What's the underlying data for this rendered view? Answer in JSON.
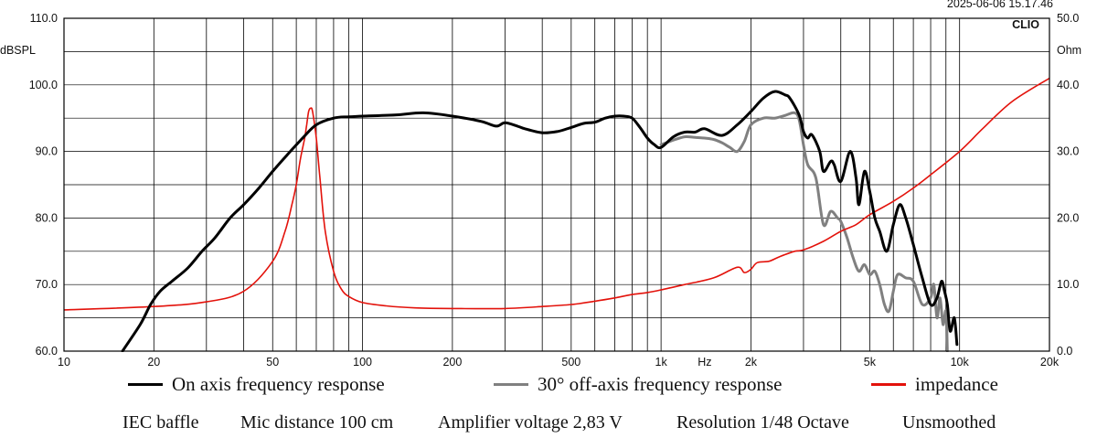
{
  "chart_data": {
    "type": "line",
    "timestamp": "2025-06-06 15.17.46",
    "brand": "CLIO",
    "left_axis": {
      "unit": "dBSPL",
      "range": [
        60,
        110
      ],
      "ticks": [
        "60.0",
        "70.0",
        "80.0",
        "90.0",
        "100.0",
        "110.0"
      ],
      "tick_values": [
        60,
        70,
        80,
        90,
        100,
        110
      ]
    },
    "right_axis": {
      "unit": "Ohm",
      "range": [
        0,
        50
      ],
      "ticks": [
        "0.0",
        "10.0",
        "20.0",
        "30.0",
        "40.0",
        "50.0"
      ],
      "tick_values": [
        0,
        10,
        20,
        30,
        40,
        50
      ]
    },
    "x_axis": {
      "scale": "log",
      "range": [
        10,
        20000
      ],
      "unit": "Hz",
      "ticks": [
        {
          "value": 10,
          "label": "10"
        },
        {
          "value": 20,
          "label": "20"
        },
        {
          "value": 50,
          "label": "50"
        },
        {
          "value": 100,
          "label": "100"
        },
        {
          "value": 200,
          "label": "200"
        },
        {
          "value": 500,
          "label": "500"
        },
        {
          "value": 1000,
          "label": "1k"
        },
        {
          "value": 2000,
          "label": "2k"
        },
        {
          "value": 5000,
          "label": "5k"
        },
        {
          "value": 10000,
          "label": "10k"
        },
        {
          "value": 20000,
          "label": "20k"
        }
      ],
      "grid": [
        20,
        30,
        40,
        50,
        60,
        70,
        80,
        90,
        100,
        200,
        300,
        400,
        500,
        600,
        700,
        800,
        900,
        1000,
        2000,
        3000,
        4000,
        5000,
        6000,
        7000,
        8000,
        9000,
        10000
      ],
      "hz_label_at": 1400
    },
    "series": [
      {
        "name": "On axis frequency response",
        "axis": "left",
        "color": "#000000",
        "width": 3,
        "x": [
          15.7,
          18,
          19.5,
          21,
          23,
          26,
          29,
          32,
          36,
          40,
          45,
          50,
          56,
          63,
          70,
          80,
          90,
          100,
          130,
          160,
          200,
          250,
          280,
          300,
          330,
          350,
          400,
          450,
          500,
          550,
          600,
          650,
          700,
          750,
          800,
          850,
          900,
          950,
          1000,
          1100,
          1200,
          1300,
          1400,
          1600,
          1800,
          2000,
          2200,
          2400,
          2600,
          2700,
          2900,
          3000,
          3100,
          3200,
          3400,
          3500,
          3700,
          3800,
          4000,
          4300,
          4500,
          4600,
          4800,
          5000,
          5200,
          5400,
          5700,
          6000,
          6300,
          6600,
          7000,
          7500,
          8000,
          8400,
          8700,
          8900,
          9100,
          9300,
          9600,
          9800
        ],
        "y": [
          60,
          64,
          67,
          69,
          70.5,
          72.5,
          75,
          77,
          80,
          82,
          84.5,
          87,
          89.5,
          92,
          94,
          95,
          95.2,
          95.3,
          95.5,
          95.8,
          95.3,
          94.5,
          93.8,
          94.3,
          93.8,
          93.4,
          92.8,
          93,
          93.6,
          94.2,
          94.4,
          95,
          95.3,
          95.3,
          95,
          93.6,
          92,
          91,
          90.6,
          92.2,
          92.9,
          92.9,
          93.4,
          92.4,
          94,
          96,
          98,
          99,
          98.5,
          98,
          95.5,
          93,
          92,
          92.5,
          90,
          87,
          88.5,
          88,
          85.5,
          90,
          86,
          82,
          87,
          84,
          80,
          78,
          75,
          79,
          82,
          80,
          76,
          71,
          67,
          68,
          70.5,
          69,
          67,
          63,
          65,
          61
        ]
      },
      {
        "name": "30° off-axis frequency response",
        "axis": "left",
        "color": "#808080",
        "width": 3,
        "x": [
          1000,
          1100,
          1200,
          1300,
          1400,
          1500,
          1600,
          1700,
          1800,
          1900,
          2000,
          2200,
          2400,
          2600,
          2800,
          2900,
          3000,
          3100,
          3300,
          3500,
          3700,
          3900,
          4000,
          4200,
          4400,
          4600,
          4800,
          5000,
          5200,
          5400,
          5600,
          5800,
          6000,
          6200,
          6600,
          7000,
          7500,
          8000,
          8200,
          8400,
          8600,
          8800,
          9000,
          9100
        ],
        "y": [
          91,
          91.7,
          92.2,
          92.1,
          92,
          91.8,
          91.3,
          90.6,
          90,
          91.5,
          94,
          95,
          95,
          95.4,
          95.8,
          94.8,
          91,
          88,
          86,
          79,
          81,
          80,
          79.5,
          77,
          74,
          72,
          73,
          71.5,
          72,
          70,
          67,
          66,
          69,
          71.5,
          71,
          70.5,
          67,
          68,
          70,
          65,
          68,
          64,
          66,
          60
        ]
      },
      {
        "name": "impedance",
        "axis": "right",
        "color": "#e3120b",
        "width": 1.6,
        "x": [
          10,
          20,
          30,
          40,
          50,
          55,
          58,
          60,
          62,
          64,
          65,
          66,
          67,
          68,
          70,
          72,
          75,
          80,
          85,
          90,
          100,
          120,
          150,
          200,
          300,
          400,
          500,
          600,
          700,
          800,
          900,
          1000,
          1200,
          1500,
          1800,
          1900,
          2000,
          2100,
          2300,
          2500,
          2800,
          3000,
          3500,
          4000,
          4500,
          5000,
          6000,
          7000,
          8000,
          10000,
          12000,
          15000,
          20000
        ],
        "y": [
          6.2,
          6.7,
          7.4,
          9,
          13.5,
          18,
          22,
          25,
          29,
          32,
          34,
          36,
          36.5,
          36,
          32,
          26,
          18,
          12,
          9.3,
          8.2,
          7.3,
          6.8,
          6.5,
          6.4,
          6.4,
          6.7,
          7,
          7.5,
          8,
          8.5,
          8.8,
          9.2,
          10,
          11,
          12.6,
          11.8,
          12.3,
          13.3,
          13.5,
          14.2,
          15,
          15.2,
          16.5,
          18,
          19,
          20.5,
          22.5,
          24.5,
          26.5,
          30,
          33.5,
          37.5,
          41
        ]
      }
    ],
    "legend": [
      {
        "label": "On axis frequency response",
        "color": "#000000"
      },
      {
        "label": "30° off-axis frequency response",
        "color": "#808080"
      },
      {
        "label": "impedance",
        "color": "#e3120b"
      }
    ],
    "notes": [
      "IEC baffle",
      "Mic distance 100 cm",
      "Amplifier voltage 2,83 V",
      "Resolution 1/48 Octave",
      "Unsmoothed"
    ]
  }
}
